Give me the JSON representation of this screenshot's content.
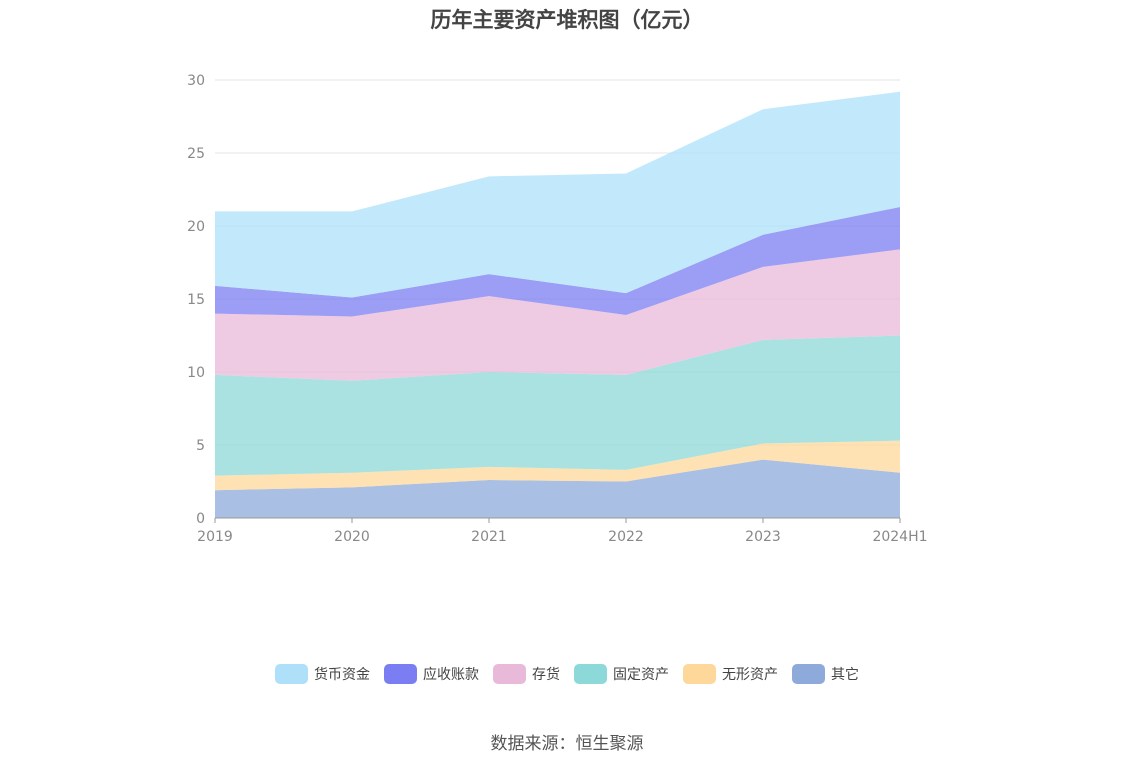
{
  "chart_data": {
    "type": "area",
    "stacked": true,
    "title": "历年主要资产堆积图（亿元）",
    "categories": [
      "2019",
      "2020",
      "2021",
      "2022",
      "2023",
      "2024H1"
    ],
    "ylim": [
      0,
      30
    ],
    "yticks": [
      0,
      5,
      10,
      15,
      20,
      25,
      30
    ],
    "grid": true,
    "legend_position": "bottom",
    "series": [
      {
        "name": "其它",
        "color": "#8eaadb",
        "values": [
          1.9,
          2.1,
          2.6,
          2.5,
          4.0,
          3.1
        ]
      },
      {
        "name": "无形资产",
        "color": "#fdd89a",
        "values": [
          1.0,
          1.0,
          0.9,
          0.8,
          1.1,
          2.2
        ]
      },
      {
        "name": "固定资产",
        "color": "#8dd8d8",
        "values": [
          6.9,
          6.3,
          6.5,
          6.5,
          7.1,
          7.2
        ]
      },
      {
        "name": "存货",
        "color": "#e9b9da",
        "values": [
          4.2,
          4.4,
          5.2,
          4.1,
          5.0,
          5.9
        ]
      },
      {
        "name": "应收账款",
        "color": "#7b7df2",
        "values": [
          1.9,
          1.3,
          1.5,
          1.5,
          2.2,
          2.9
        ]
      },
      {
        "name": "货币资金",
        "color": "#aee1f9",
        "values": [
          5.1,
          5.9,
          6.7,
          8.2,
          8.6,
          7.9
        ]
      }
    ],
    "legend_order": [
      "货币资金",
      "应收账款",
      "存货",
      "固定资产",
      "无形资产",
      "其它"
    ]
  },
  "footer": {
    "source": "数据来源：恒生聚源"
  }
}
